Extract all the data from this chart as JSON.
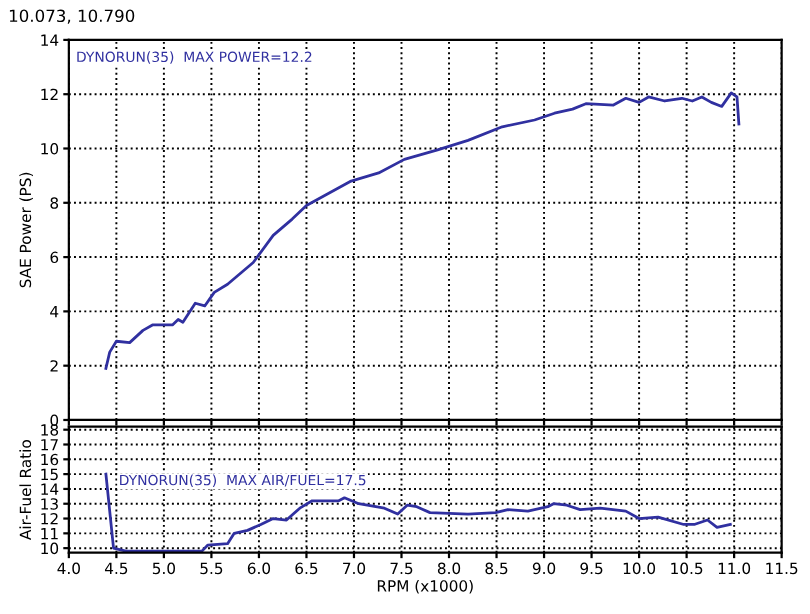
{
  "chart_data": [
    {
      "type": "line",
      "ylabel": "SAE Power (PS)",
      "annotations": [
        "10.073, 10.790",
        "DYNORUN(35)  MAX POWER=12.2"
      ],
      "xlim": [
        4.0,
        11.5
      ],
      "xticks": [
        {
          "value": 4.0,
          "label": null
        },
        {
          "value": 4.5,
          "label": null
        },
        {
          "value": 5.0,
          "label": null
        },
        {
          "value": 5.5,
          "label": null
        },
        {
          "value": 6.0,
          "label": null
        },
        {
          "value": 6.5,
          "label": null
        },
        {
          "value": 7.0,
          "label": null
        },
        {
          "value": 7.5,
          "label": null
        },
        {
          "value": 8.0,
          "label": null
        },
        {
          "value": 8.5,
          "label": null
        },
        {
          "value": 9.0,
          "label": null
        },
        {
          "value": 9.5,
          "label": null
        },
        {
          "value": 10.0,
          "label": null
        },
        {
          "value": 10.5,
          "label": null
        },
        {
          "value": 11.0,
          "label": null
        },
        {
          "value": 11.5,
          "label": null
        }
      ],
      "ylim": [
        0,
        14
      ],
      "yticks": [
        0,
        2,
        4,
        6,
        8,
        10,
        12,
        14
      ],
      "grid": true,
      "tick_labels": "y",
      "series": [
        {
          "color": "#3030a0",
          "x": [
            4.39,
            4.43,
            4.5,
            4.64,
            4.78,
            4.88,
            5.09,
            5.15,
            5.2,
            5.33,
            5.43,
            5.53,
            5.67,
            5.94,
            6.15,
            6.35,
            6.5,
            6.97,
            7.26,
            7.53,
            7.88,
            8.2,
            8.56,
            8.9,
            9.11,
            9.3,
            9.44,
            9.73,
            9.86,
            10.0,
            10.1,
            10.27,
            10.45,
            10.56,
            10.66,
            10.76,
            10.87,
            10.97,
            11.03,
            11.05
          ],
          "values": [
            1.9,
            2.5,
            2.9,
            2.85,
            3.3,
            3.5,
            3.5,
            3.7,
            3.6,
            4.3,
            4.2,
            4.7,
            5.0,
            5.8,
            6.8,
            7.4,
            7.9,
            8.8,
            9.1,
            9.6,
            9.95,
            10.3,
            10.8,
            11.05,
            11.3,
            11.45,
            11.65,
            11.6,
            11.85,
            11.7,
            11.9,
            11.75,
            11.85,
            11.75,
            11.9,
            11.7,
            11.55,
            12.05,
            11.9,
            10.9
          ]
        }
      ]
    },
    {
      "type": "line",
      "ylabel": "Air-Fuel Ratio",
      "xlabel": "RPM (x1000)",
      "annotations": [
        "DYNORUN(35)  MAX AIR/FUEL=17.5"
      ],
      "xlim": [
        4.0,
        11.5
      ],
      "xticks": [
        {
          "value": 4.0,
          "label": "4.0"
        },
        {
          "value": 4.5,
          "label": "4.5"
        },
        {
          "value": 5.0,
          "label": "5.0"
        },
        {
          "value": 5.5,
          "label": "5.5"
        },
        {
          "value": 6.0,
          "label": "6.0"
        },
        {
          "value": 6.5,
          "label": "6.5"
        },
        {
          "value": 7.0,
          "label": "7.0"
        },
        {
          "value": 7.5,
          "label": "7.5"
        },
        {
          "value": 8.0,
          "label": "8.0"
        },
        {
          "value": 8.5,
          "label": "8.5"
        },
        {
          "value": 9.0,
          "label": "9.0"
        },
        {
          "value": 9.5,
          "label": "9.5"
        },
        {
          "value": 10.0,
          "label": "10.0"
        },
        {
          "value": 10.5,
          "label": "10.5"
        },
        {
          "value": 11.0,
          "label": "11.0"
        },
        {
          "value": 11.5,
          "label": "11.5"
        }
      ],
      "ylim": [
        9.7,
        18.2
      ],
      "yticks": [
        10,
        11,
        12,
        13,
        14,
        15,
        16,
        17,
        18
      ],
      "grid": true,
      "series": [
        {
          "color": "#3030a0",
          "x": [
            4.39,
            4.47,
            4.6,
            5.4,
            5.46,
            5.67,
            5.74,
            5.88,
            6.02,
            6.15,
            6.29,
            6.43,
            6.56,
            6.84,
            6.9,
            7.05,
            7.32,
            7.46,
            7.56,
            7.66,
            7.8,
            8.2,
            8.49,
            8.62,
            8.83,
            9.04,
            9.1,
            9.24,
            9.38,
            9.59,
            9.86,
            10.0,
            10.2,
            10.47,
            10.58,
            10.72,
            10.82,
            10.96
          ],
          "values": [
            15.0,
            10.0,
            9.8,
            9.8,
            10.2,
            10.3,
            11.0,
            11.2,
            11.6,
            12.0,
            11.9,
            12.7,
            13.2,
            13.2,
            13.4,
            13.0,
            12.7,
            12.3,
            12.9,
            12.8,
            12.4,
            12.3,
            12.4,
            12.6,
            12.5,
            12.8,
            13.0,
            12.9,
            12.6,
            12.7,
            12.5,
            12.0,
            12.1,
            11.6,
            11.6,
            11.9,
            11.4,
            11.6
          ]
        }
      ]
    }
  ]
}
